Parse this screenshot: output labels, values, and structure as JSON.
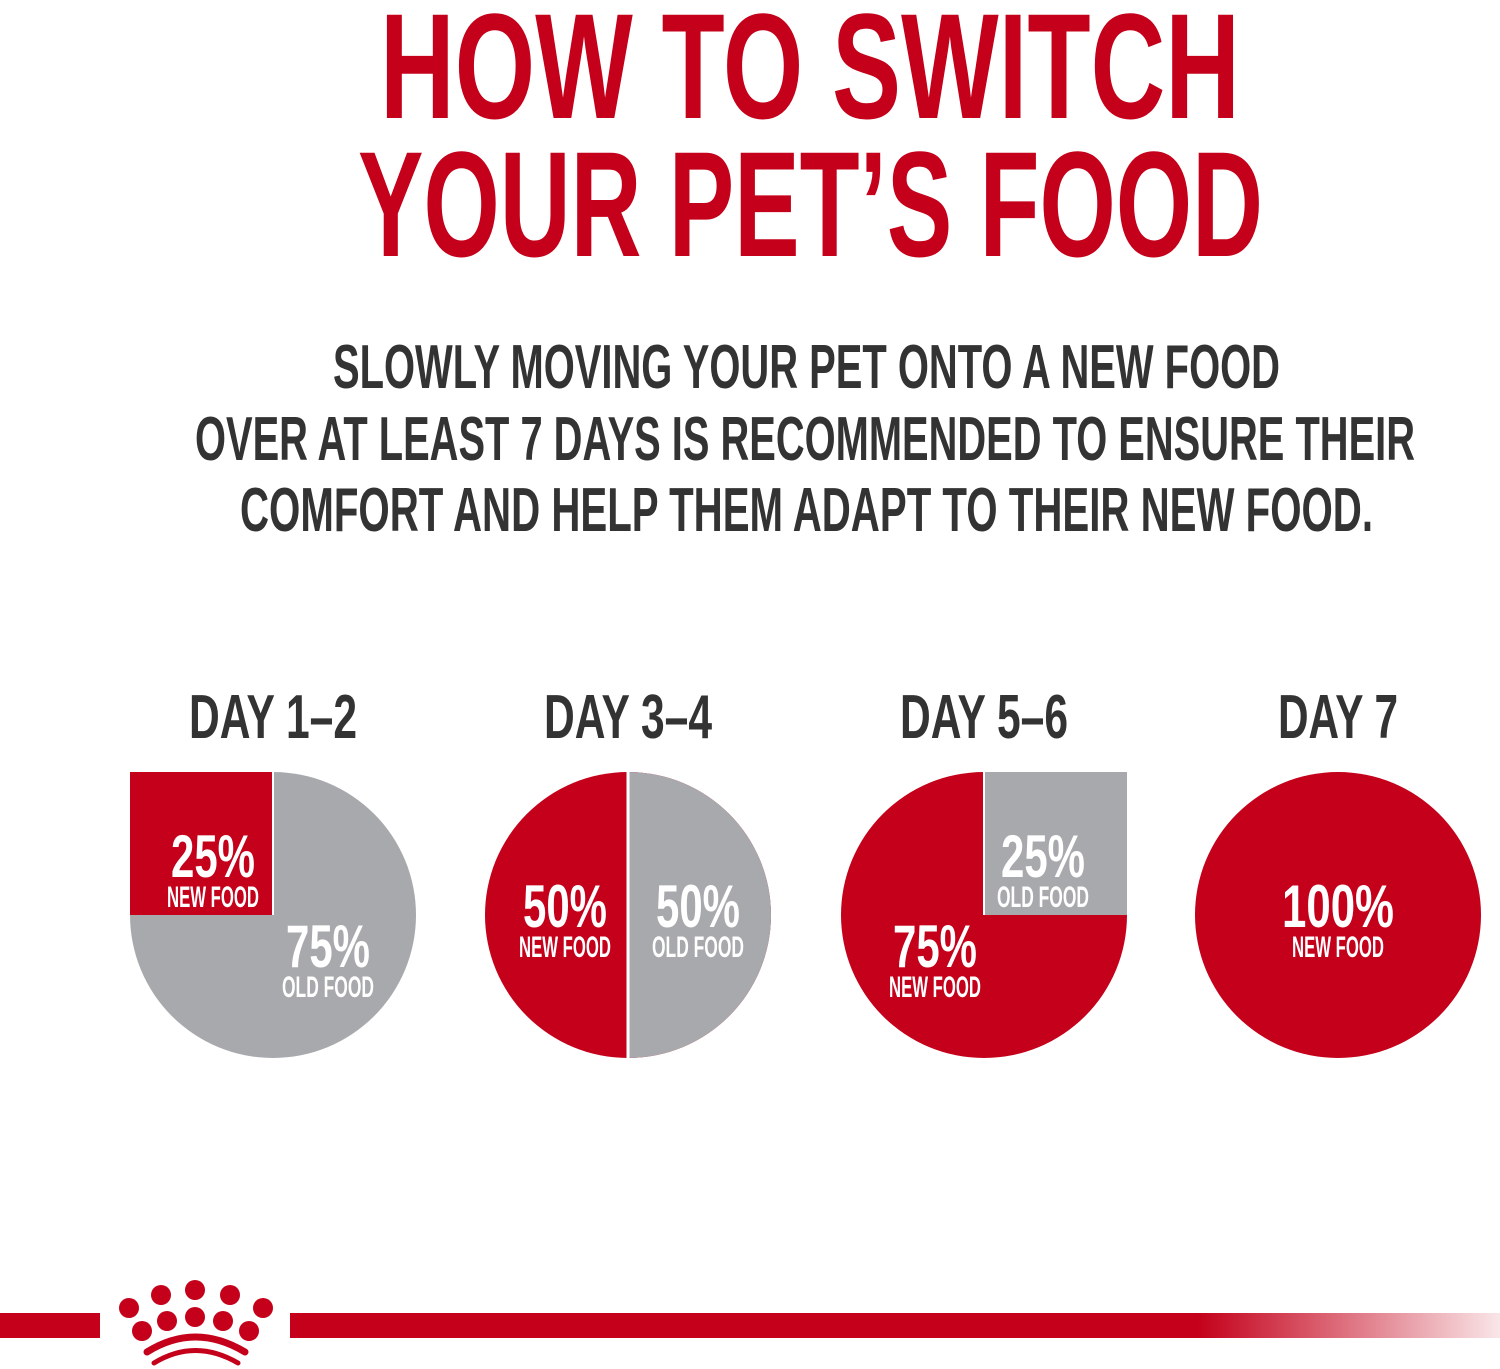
{
  "title": {
    "line1": "HOW TO SWITCH",
    "line2": "YOUR PET’S FOOD"
  },
  "subtitle": {
    "line1": "SLOWLY MOVING YOUR PET ONTO A NEW FOOD",
    "line2": "OVER AT LEAST 7 DAYS IS RECOMMENDED TO ENSURE THEIR",
    "line3": "COMFORT AND HELP THEM ADAPT TO THEIR NEW FOOD."
  },
  "colors": {
    "new_food": "#c4001a",
    "old_food": "#a7a9ac",
    "title": "#c4001a",
    "text": "#333333"
  },
  "logo": {
    "name": "crown-logo-icon"
  },
  "chart_data": {
    "type": "pie",
    "categories": [
      "NEW FOOD",
      "OLD FOOD"
    ],
    "pies": [
      {
        "title": "DAY 1–2",
        "values": [
          25,
          75
        ],
        "labels": [
          "25%",
          "75%"
        ]
      },
      {
        "title": "DAY 3–4",
        "values": [
          50,
          50
        ],
        "labels": [
          "50%",
          "50%"
        ]
      },
      {
        "title": "DAY 5–6",
        "values": [
          75,
          25
        ],
        "labels": [
          "75%",
          "25%"
        ]
      },
      {
        "title": "DAY 7",
        "values": [
          100,
          0
        ],
        "labels": [
          "100%",
          ""
        ]
      }
    ]
  }
}
